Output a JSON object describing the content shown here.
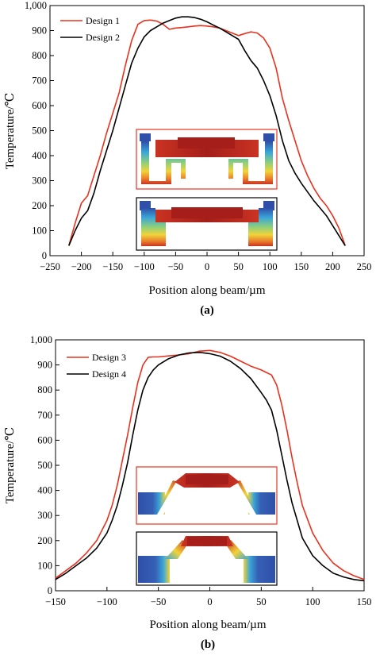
{
  "colors": {
    "red": "#e8321e",
    "black": "#000000",
    "hot": "#b3201c",
    "cold": "#2f4fa8"
  },
  "chart_data": [
    {
      "type": "line",
      "panel_label": "(a)",
      "xlabel": "Position along beam/µm",
      "ylabel": "Temperature/℃",
      "xlim": [
        -250,
        250
      ],
      "ylim": [
        0,
        1000
      ],
      "xticks": [
        "−250",
        "−200",
        "−150",
        "−100",
        "−50",
        "0",
        "50",
        "100",
        "150",
        "200",
        "250"
      ],
      "yticks": [
        "0",
        "100",
        "200",
        "300",
        "400",
        "500",
        "600",
        "700",
        "800",
        "900",
        "1,000"
      ],
      "legend_position": "top-left",
      "series": [
        {
          "name": "Design 1",
          "color": "red",
          "x": [
            -220,
            -210,
            -200,
            -190,
            -180,
            -170,
            -160,
            -150,
            -140,
            -130,
            -120,
            -110,
            -100,
            -90,
            -80,
            -70,
            -60,
            -50,
            -40,
            -30,
            -20,
            -10,
            0,
            10,
            20,
            30,
            40,
            50,
            60,
            70,
            80,
            90,
            100,
            110,
            120,
            130,
            140,
            150,
            160,
            170,
            180,
            190,
            200,
            210,
            220
          ],
          "y": [
            40,
            130,
            210,
            240,
            320,
            400,
            490,
            570,
            650,
            760,
            860,
            925,
            940,
            942,
            938,
            925,
            905,
            910,
            912,
            915,
            918,
            920,
            918,
            915,
            910,
            900,
            890,
            880,
            888,
            895,
            890,
            870,
            830,
            750,
            630,
            540,
            460,
            380,
            320,
            270,
            230,
            200,
            160,
            110,
            40
          ]
        },
        {
          "name": "Design 2",
          "color": "black",
          "x": [
            -220,
            -210,
            -200,
            -190,
            -180,
            -170,
            -160,
            -150,
            -140,
            -130,
            -120,
            -110,
            -100,
            -90,
            -80,
            -70,
            -60,
            -50,
            -40,
            -30,
            -20,
            -10,
            0,
            10,
            20,
            30,
            40,
            50,
            60,
            70,
            80,
            90,
            100,
            110,
            120,
            130,
            140,
            150,
            160,
            170,
            180,
            190,
            200,
            210,
            220
          ],
          "y": [
            40,
            100,
            150,
            180,
            250,
            340,
            420,
            500,
            590,
            680,
            770,
            830,
            875,
            900,
            915,
            930,
            940,
            950,
            955,
            955,
            952,
            945,
            935,
            922,
            910,
            895,
            880,
            865,
            820,
            780,
            750,
            700,
            640,
            560,
            460,
            380,
            330,
            290,
            255,
            220,
            190,
            160,
            120,
            80,
            40
          ]
        }
      ],
      "insets": [
        {
          "frame_color": "red"
        },
        {
          "frame_color": "black"
        }
      ]
    },
    {
      "type": "line",
      "panel_label": "(b)",
      "xlabel": "Position along beam/µm",
      "ylabel": "Temperature/℃",
      "xlim": [
        -150,
        150
      ],
      "ylim": [
        0,
        1000
      ],
      "xticks": [
        "−150",
        "−100",
        "−50",
        "0",
        "50",
        "100",
        "150"
      ],
      "yticks": [
        "0",
        "100",
        "200",
        "300",
        "400",
        "500",
        "600",
        "700",
        "800",
        "900",
        "1,000"
      ],
      "legend_position": "top-left",
      "series": [
        {
          "name": "Design 3",
          "color": "red",
          "x": [
            -150,
            -140,
            -130,
            -120,
            -110,
            -100,
            -95,
            -90,
            -85,
            -80,
            -75,
            -70,
            -65,
            -60,
            -55,
            -50,
            -40,
            -30,
            -20,
            -10,
            0,
            10,
            20,
            30,
            40,
            50,
            55,
            60,
            65,
            70,
            75,
            80,
            85,
            90,
            100,
            110,
            120,
            130,
            140,
            150
          ],
          "y": [
            50,
            80,
            110,
            150,
            200,
            280,
            340,
            420,
            520,
            620,
            730,
            830,
            900,
            930,
            932,
            932,
            936,
            940,
            945,
            955,
            958,
            950,
            935,
            915,
            895,
            880,
            870,
            860,
            820,
            740,
            640,
            530,
            430,
            340,
            230,
            160,
            110,
            80,
            60,
            45
          ]
        },
        {
          "name": "Design 4",
          "color": "black",
          "x": [
            -150,
            -140,
            -130,
            -120,
            -110,
            -100,
            -95,
            -90,
            -85,
            -80,
            -75,
            -70,
            -65,
            -60,
            -55,
            -50,
            -40,
            -30,
            -20,
            -10,
            0,
            10,
            20,
            30,
            40,
            50,
            55,
            60,
            65,
            70,
            75,
            80,
            85,
            90,
            100,
            110,
            120,
            130,
            140,
            150
          ],
          "y": [
            45,
            70,
            100,
            130,
            170,
            230,
            280,
            340,
            420,
            510,
            620,
            720,
            800,
            850,
            880,
            900,
            925,
            940,
            948,
            950,
            945,
            935,
            915,
            885,
            845,
            790,
            760,
            720,
            640,
            540,
            440,
            350,
            280,
            210,
            140,
            100,
            70,
            55,
            45,
            40
          ]
        }
      ],
      "insets": [
        {
          "frame_color": "red"
        },
        {
          "frame_color": "black"
        }
      ]
    }
  ]
}
